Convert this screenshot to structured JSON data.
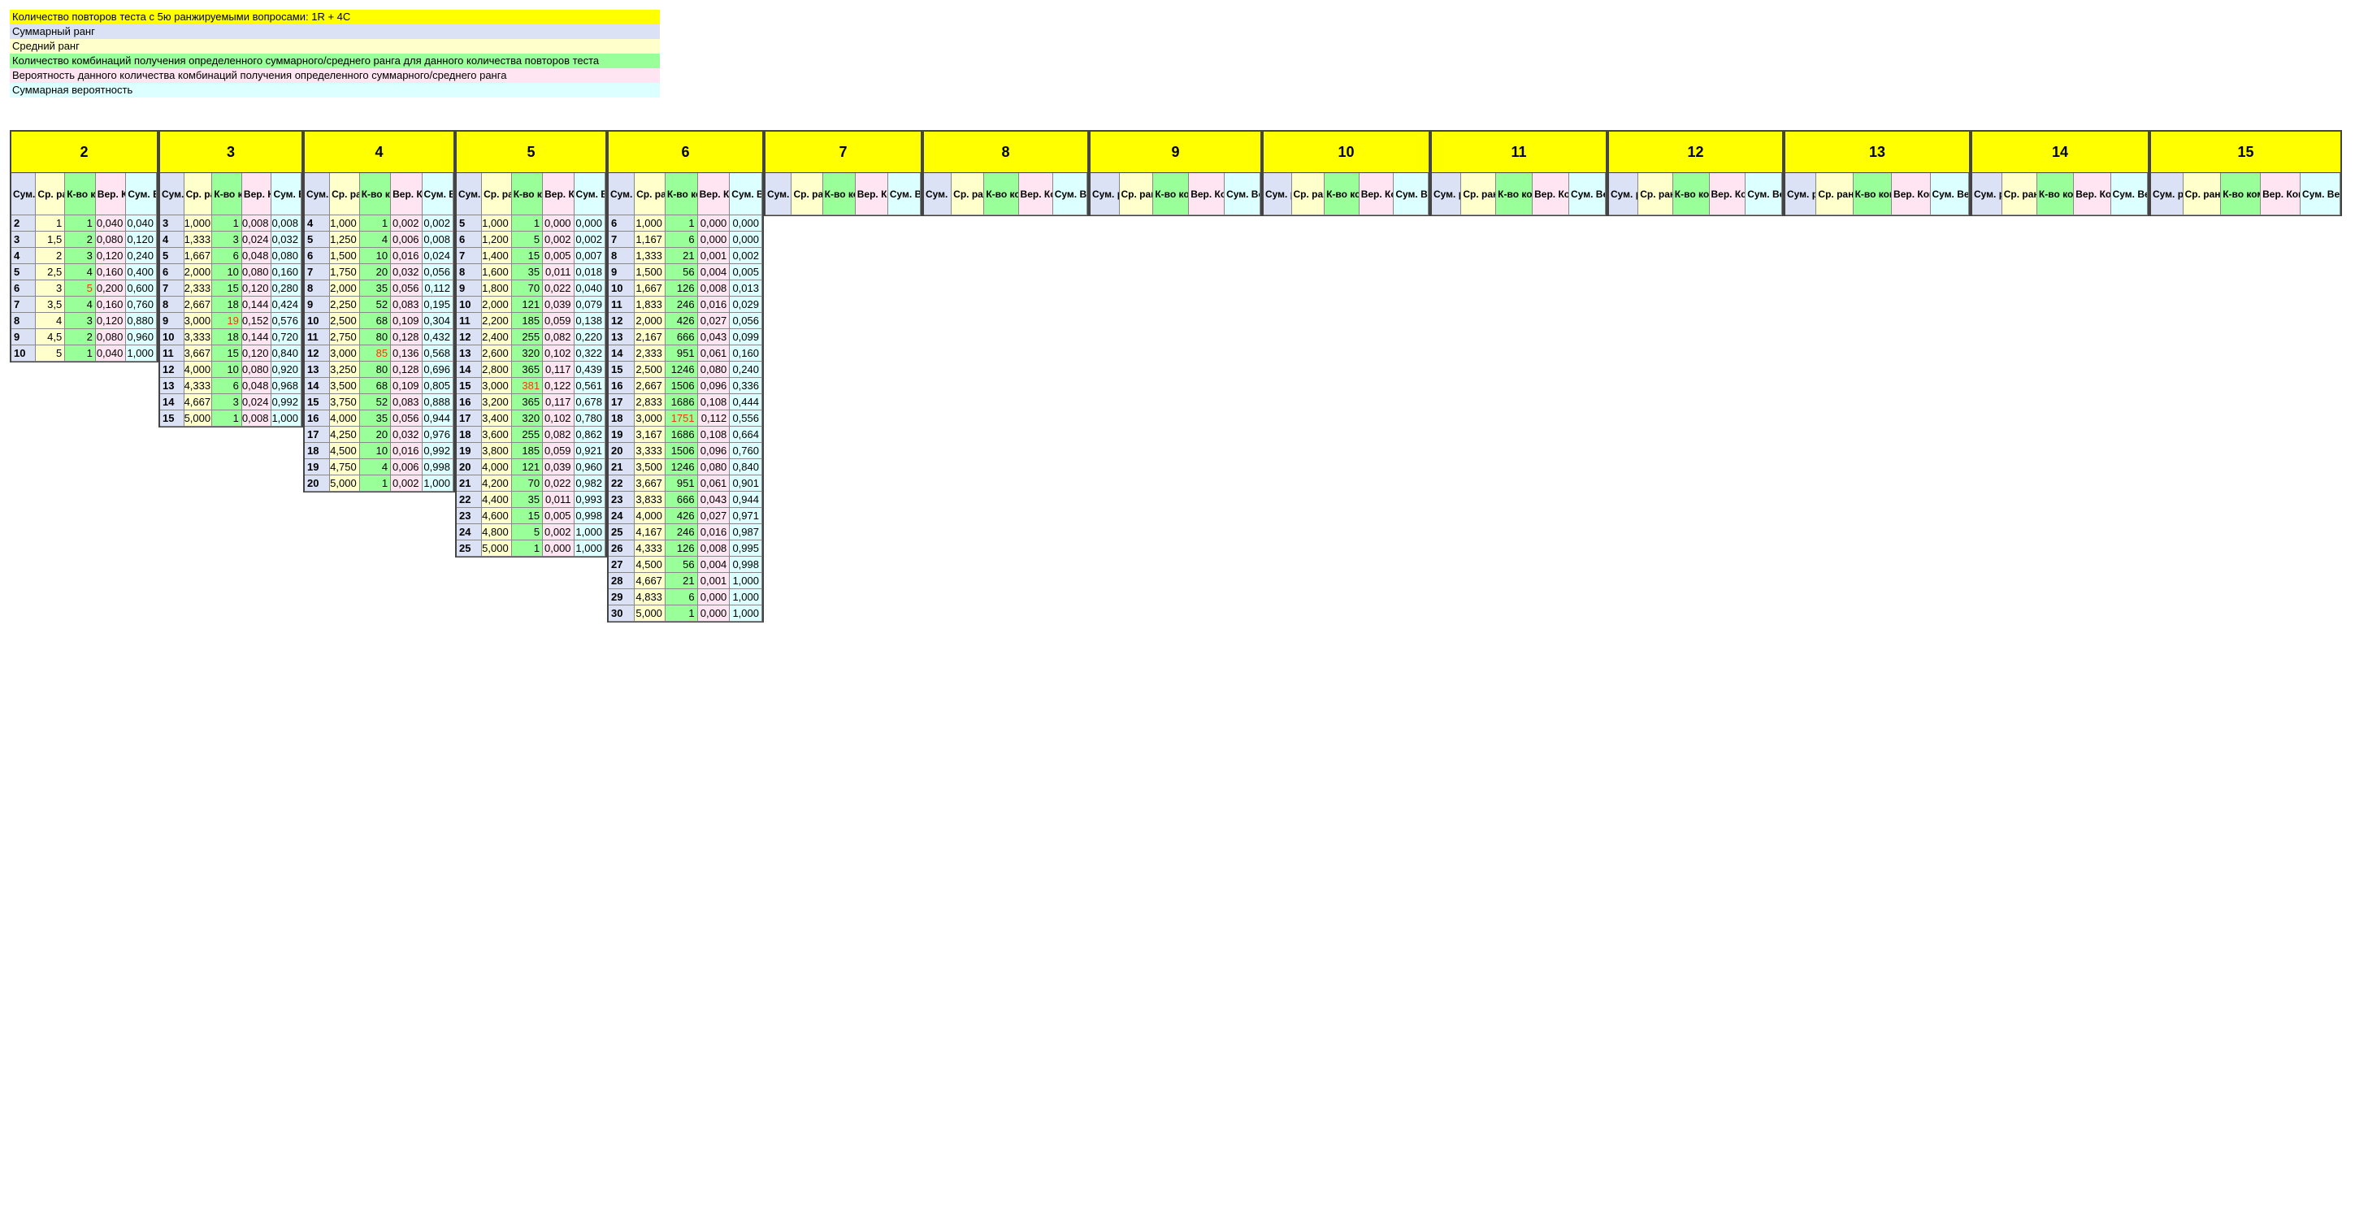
{
  "legend": [
    "Количество повторов теста с 5ю ранжируемыми вопросами: 1R + 4C",
    "Суммарный ранг",
    "Средний ранг",
    "Количество комбинаций получения определенного суммарного/среднего ранга для данного количества повторов теста",
    "Вероятность данного количества комбинаций получения определенного суммарного/среднего ранга",
    "Суммарная вероятность"
  ],
  "column_headers": [
    "Сум. ранг",
    "Ср. ранг",
    "К-во комб",
    "Вер. Комб",
    "Сум. Вер"
  ],
  "blocks": [
    {
      "n": "2",
      "peak": 4,
      "rows": [
        [
          "2",
          "1",
          "1",
          "0,040",
          "0,040"
        ],
        [
          "3",
          "1,5",
          "2",
          "0,080",
          "0,120"
        ],
        [
          "4",
          "2",
          "3",
          "0,120",
          "0,240"
        ],
        [
          "5",
          "2,5",
          "4",
          "0,160",
          "0,400"
        ],
        [
          "6",
          "3",
          "5",
          "0,200",
          "0,600"
        ],
        [
          "7",
          "3,5",
          "4",
          "0,160",
          "0,760"
        ],
        [
          "8",
          "4",
          "3",
          "0,120",
          "0,880"
        ],
        [
          "9",
          "4,5",
          "2",
          "0,080",
          "0,960"
        ],
        [
          "10",
          "5",
          "1",
          "0,040",
          "1,000"
        ]
      ]
    },
    {
      "n": "3",
      "peak": 6,
      "rows": [
        [
          "3",
          "1,000",
          "1",
          "0,008",
          "0,008"
        ],
        [
          "4",
          "1,333",
          "3",
          "0,024",
          "0,032"
        ],
        [
          "5",
          "1,667",
          "6",
          "0,048",
          "0,080"
        ],
        [
          "6",
          "2,000",
          "10",
          "0,080",
          "0,160"
        ],
        [
          "7",
          "2,333",
          "15",
          "0,120",
          "0,280"
        ],
        [
          "8",
          "2,667",
          "18",
          "0,144",
          "0,424"
        ],
        [
          "9",
          "3,000",
          "19",
          "0,152",
          "0,576"
        ],
        [
          "10",
          "3,333",
          "18",
          "0,144",
          "0,720"
        ],
        [
          "11",
          "3,667",
          "15",
          "0,120",
          "0,840"
        ],
        [
          "12",
          "4,000",
          "10",
          "0,080",
          "0,920"
        ],
        [
          "13",
          "4,333",
          "6",
          "0,048",
          "0,968"
        ],
        [
          "14",
          "4,667",
          "3",
          "0,024",
          "0,992"
        ],
        [
          "15",
          "5,000",
          "1",
          "0,008",
          "1,000"
        ]
      ]
    },
    {
      "n": "4",
      "peak": 8,
      "rows": [
        [
          "4",
          "1,000",
          "1",
          "0,002",
          "0,002"
        ],
        [
          "5",
          "1,250",
          "4",
          "0,006",
          "0,008"
        ],
        [
          "6",
          "1,500",
          "10",
          "0,016",
          "0,024"
        ],
        [
          "7",
          "1,750",
          "20",
          "0,032",
          "0,056"
        ],
        [
          "8",
          "2,000",
          "35",
          "0,056",
          "0,112"
        ],
        [
          "9",
          "2,250",
          "52",
          "0,083",
          "0,195"
        ],
        [
          "10",
          "2,500",
          "68",
          "0,109",
          "0,304"
        ],
        [
          "11",
          "2,750",
          "80",
          "0,128",
          "0,432"
        ],
        [
          "12",
          "3,000",
          "85",
          "0,136",
          "0,568"
        ],
        [
          "13",
          "3,250",
          "80",
          "0,128",
          "0,696"
        ],
        [
          "14",
          "3,500",
          "68",
          "0,109",
          "0,805"
        ],
        [
          "15",
          "3,750",
          "52",
          "0,083",
          "0,888"
        ],
        [
          "16",
          "4,000",
          "35",
          "0,056",
          "0,944"
        ],
        [
          "17",
          "4,250",
          "20",
          "0,032",
          "0,976"
        ],
        [
          "18",
          "4,500",
          "10",
          "0,016",
          "0,992"
        ],
        [
          "19",
          "4,750",
          "4",
          "0,006",
          "0,998"
        ],
        [
          "20",
          "5,000",
          "1",
          "0,002",
          "1,000"
        ]
      ]
    },
    {
      "n": "5",
      "peak": 10,
      "rows": [
        [
          "5",
          "1,000",
          "1",
          "0,000",
          "0,000"
        ],
        [
          "6",
          "1,200",
          "5",
          "0,002",
          "0,002"
        ],
        [
          "7",
          "1,400",
          "15",
          "0,005",
          "0,007"
        ],
        [
          "8",
          "1,600",
          "35",
          "0,011",
          "0,018"
        ],
        [
          "9",
          "1,800",
          "70",
          "0,022",
          "0,040"
        ],
        [
          "10",
          "2,000",
          "121",
          "0,039",
          "0,079"
        ],
        [
          "11",
          "2,200",
          "185",
          "0,059",
          "0,138"
        ],
        [
          "12",
          "2,400",
          "255",
          "0,082",
          "0,220"
        ],
        [
          "13",
          "2,600",
          "320",
          "0,102",
          "0,322"
        ],
        [
          "14",
          "2,800",
          "365",
          "0,117",
          "0,439"
        ],
        [
          "15",
          "3,000",
          "381",
          "0,122",
          "0,561"
        ],
        [
          "16",
          "3,200",
          "365",
          "0,117",
          "0,678"
        ],
        [
          "17",
          "3,400",
          "320",
          "0,102",
          "0,780"
        ],
        [
          "18",
          "3,600",
          "255",
          "0,082",
          "0,862"
        ],
        [
          "19",
          "3,800",
          "185",
          "0,059",
          "0,921"
        ],
        [
          "20",
          "4,000",
          "121",
          "0,039",
          "0,960"
        ],
        [
          "21",
          "4,200",
          "70",
          "0,022",
          "0,982"
        ],
        [
          "22",
          "4,400",
          "35",
          "0,011",
          "0,993"
        ],
        [
          "23",
          "4,600",
          "15",
          "0,005",
          "0,998"
        ],
        [
          "24",
          "4,800",
          "5",
          "0,002",
          "1,000"
        ],
        [
          "25",
          "5,000",
          "1",
          "0,000",
          "1,000"
        ]
      ]
    },
    {
      "n": "6",
      "peak": 12,
      "rows": [
        [
          "6",
          "1,000",
          "1",
          "0,000",
          "0,000"
        ],
        [
          "7",
          "1,167",
          "6",
          "0,000",
          "0,000"
        ],
        [
          "8",
          "1,333",
          "21",
          "0,001",
          "0,002"
        ],
        [
          "9",
          "1,500",
          "56",
          "0,004",
          "0,005"
        ],
        [
          "10",
          "1,667",
          "126",
          "0,008",
          "0,013"
        ],
        [
          "11",
          "1,833",
          "246",
          "0,016",
          "0,029"
        ],
        [
          "12",
          "2,000",
          "426",
          "0,027",
          "0,056"
        ],
        [
          "13",
          "2,167",
          "666",
          "0,043",
          "0,099"
        ],
        [
          "14",
          "2,333",
          "951",
          "0,061",
          "0,160"
        ],
        [
          "15",
          "2,500",
          "1246",
          "0,080",
          "0,240"
        ],
        [
          "16",
          "2,667",
          "1506",
          "0,096",
          "0,336"
        ],
        [
          "17",
          "2,833",
          "1686",
          "0,108",
          "0,444"
        ],
        [
          "18",
          "3,000",
          "1751",
          "0,112",
          "0,556"
        ],
        [
          "19",
          "3,167",
          "1686",
          "0,108",
          "0,664"
        ],
        [
          "20",
          "3,333",
          "1506",
          "0,096",
          "0,760"
        ],
        [
          "21",
          "3,500",
          "1246",
          "0,080",
          "0,840"
        ],
        [
          "22",
          "3,667",
          "951",
          "0,061",
          "0,901"
        ],
        [
          "23",
          "3,833",
          "666",
          "0,043",
          "0,944"
        ],
        [
          "24",
          "4,000",
          "426",
          "0,027",
          "0,971"
        ],
        [
          "25",
          "4,167",
          "246",
          "0,016",
          "0,987"
        ],
        [
          "26",
          "4,333",
          "126",
          "0,008",
          "0,995"
        ],
        [
          "27",
          "4,500",
          "56",
          "0,004",
          "0,998"
        ],
        [
          "28",
          "4,667",
          "21",
          "0,001",
          "1,000"
        ],
        [
          "29",
          "4,833",
          "6",
          "0,000",
          "1,000"
        ],
        [
          "30",
          "5,000",
          "1",
          "0,000",
          "1,000"
        ]
      ]
    },
    {
      "n": "7"
    },
    {
      "n": "8"
    },
    {
      "n": "9"
    },
    {
      "n": "10"
    },
    {
      "n": "11"
    },
    {
      "n": "12"
    },
    {
      "n": "13"
    },
    {
      "n": "14"
    },
    {
      "n": "15"
    }
  ]
}
